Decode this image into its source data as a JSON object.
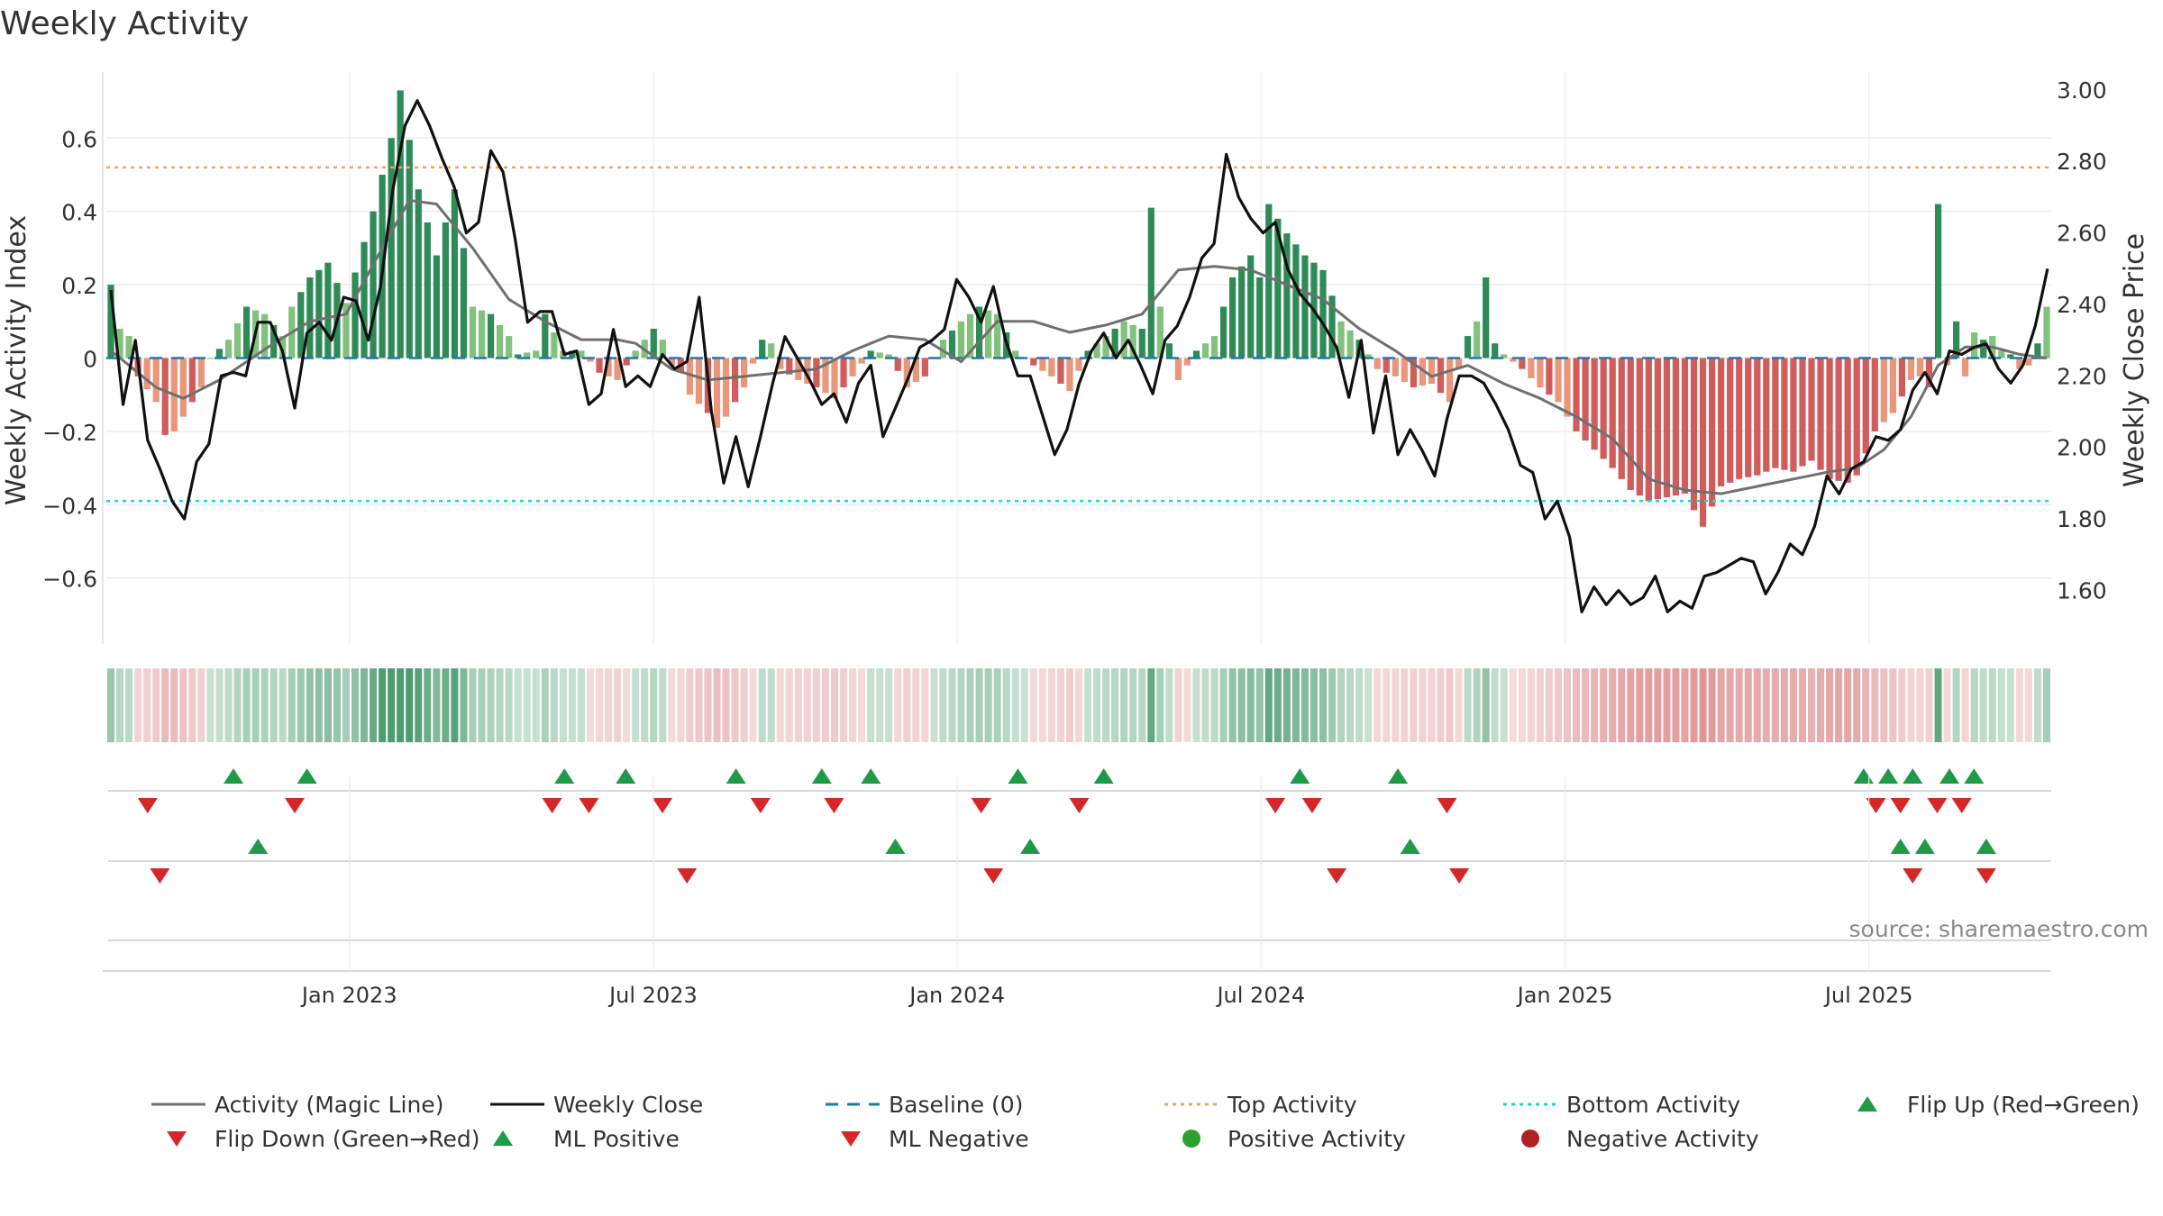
{
  "chart_data": {
    "type": "bar",
    "title": "Weekly Activity",
    "ylabel_left": "Weekly Activity Index",
    "ylabel_right": "Weekly Close Price",
    "source": "source: sharemaestro.com",
    "x_range": [
      2022.6,
      2025.8
    ],
    "ylim_left": [
      -0.78,
      0.78
    ],
    "ylim_right": [
      1.45,
      3.05
    ],
    "yticks_left": [
      {
        "v": 0.6,
        "label": "0.6"
      },
      {
        "v": 0.4,
        "label": "0.4"
      },
      {
        "v": 0.2,
        "label": "0.2"
      },
      {
        "v": 0,
        "label": "0"
      },
      {
        "v": -0.2,
        "label": "−0.2"
      },
      {
        "v": -0.4,
        "label": "−0.4"
      },
      {
        "v": -0.6,
        "label": "−0.6"
      }
    ],
    "yticks_right": [
      {
        "v": 3.0,
        "label": "3.00"
      },
      {
        "v": 2.8,
        "label": "2.80"
      },
      {
        "v": 2.6,
        "label": "2.60"
      },
      {
        "v": 2.4,
        "label": "2.40"
      },
      {
        "v": 2.2,
        "label": "2.20"
      },
      {
        "v": 2.0,
        "label": "2.00"
      },
      {
        "v": 1.8,
        "label": "1.80"
      },
      {
        "v": 1.6,
        "label": "1.60"
      }
    ],
    "xticks": [
      {
        "x": 2023.0,
        "label": "Jan 2023"
      },
      {
        "x": 2023.5,
        "label": "Jul 2023"
      },
      {
        "x": 2024.0,
        "label": "Jan 2024"
      },
      {
        "x": 2024.5,
        "label": "Jul 2024"
      },
      {
        "x": 2025.0,
        "label": "Jan 2025"
      },
      {
        "x": 2025.5,
        "label": "Jul 2025"
      }
    ],
    "top_activity": 0.52,
    "bottom_activity": -0.39,
    "colors": {
      "strong_pos": "#2e8b57",
      "weak_pos": "#82c27e",
      "strong_neg": "#d05c5c",
      "weak_neg": "#e9967a",
      "close": "#111111",
      "magic": "#707070",
      "baseline": "#1f77b4",
      "top": "#f4a460",
      "bottom": "#22d3d3",
      "flip_up": "#1f9a48",
      "flip_down": "#d62728",
      "pos_dot": "#2ca02c",
      "neg_dot": "#b22222"
    },
    "activity_keypoints": [
      [
        0,
        0.2
      ],
      [
        1,
        0.08
      ],
      [
        2,
        0.06
      ],
      [
        3,
        -0.05
      ],
      [
        5,
        -0.12
      ],
      [
        6,
        -0.21
      ],
      [
        7,
        -0.2
      ],
      [
        10,
        -0.08
      ],
      [
        11,
        0
      ],
      [
        13,
        0.05
      ],
      [
        15,
        0.14
      ],
      [
        17,
        0.12
      ],
      [
        19,
        0.06
      ],
      [
        20,
        0.14
      ],
      [
        22,
        0.22
      ],
      [
        24,
        0.26
      ],
      [
        26,
        0.15
      ],
      [
        29,
        0.4
      ],
      [
        31,
        0.6
      ],
      [
        32,
        0.73
      ],
      [
        34,
        0.46
      ],
      [
        36,
        0.28
      ],
      [
        38,
        0.46
      ],
      [
        40,
        0.14
      ],
      [
        42,
        0.12
      ],
      [
        44,
        0.06
      ],
      [
        45,
        0.01
      ],
      [
        47,
        0.02
      ],
      [
        48,
        0.12
      ],
      [
        50,
        0.02
      ],
      [
        52,
        0.02
      ],
      [
        54,
        -0.04
      ],
      [
        56,
        -0.06
      ],
      [
        58,
        0.02
      ],
      [
        60,
        0.08
      ],
      [
        61,
        0.05
      ],
      [
        62,
        -0.02
      ],
      [
        63,
        -0.04
      ],
      [
        64,
        -0.1
      ],
      [
        66,
        -0.15
      ],
      [
        67,
        -0.19
      ],
      [
        68,
        -0.16
      ],
      [
        70,
        -0.08
      ],
      [
        72,
        0.05
      ],
      [
        73,
        0.04
      ],
      [
        74,
        -0.03
      ],
      [
        76,
        -0.06
      ],
      [
        78,
        -0.08
      ],
      [
        80,
        -0.11
      ],
      [
        82,
        -0.05
      ],
      [
        84,
        0.02
      ],
      [
        86,
        0.01
      ],
      [
        88,
        -0.08
      ],
      [
        90,
        -0.05
      ],
      [
        92,
        0.05
      ],
      [
        94,
        0.1
      ],
      [
        96,
        0.14
      ],
      [
        98,
        0.12
      ],
      [
        100,
        0.02
      ],
      [
        102,
        -0.02
      ],
      [
        104,
        -0.05
      ],
      [
        106,
        -0.09
      ],
      [
        108,
        0.02
      ],
      [
        110,
        0.06
      ],
      [
        112,
        0.1
      ],
      [
        114,
        0.08
      ],
      [
        115,
        0.41
      ],
      [
        116,
        0.14
      ],
      [
        118,
        -0.06
      ],
      [
        120,
        0.02
      ],
      [
        122,
        0.06
      ],
      [
        124,
        0.22
      ],
      [
        126,
        0.28
      ],
      [
        127,
        0.22
      ],
      [
        128,
        0.42
      ],
      [
        130,
        0.34
      ],
      [
        132,
        0.28
      ],
      [
        133,
        0.26
      ],
      [
        134,
        0.24
      ],
      [
        136,
        0.1
      ],
      [
        138,
        0.05
      ],
      [
        140,
        -0.03
      ],
      [
        142,
        -0.05
      ],
      [
        144,
        -0.08
      ],
      [
        146,
        -0.07
      ],
      [
        148,
        -0.12
      ],
      [
        150,
        0.06
      ],
      [
        151,
        0.1
      ],
      [
        152,
        0.22
      ],
      [
        153,
        0.04
      ],
      [
        154,
        0.01
      ],
      [
        156,
        -0.03
      ],
      [
        158,
        -0.08
      ],
      [
        160,
        -0.12
      ],
      [
        162,
        -0.2
      ],
      [
        164,
        -0.25
      ],
      [
        166,
        -0.3
      ],
      [
        168,
        -0.36
      ],
      [
        170,
        -0.39
      ],
      [
        172,
        -0.38
      ],
      [
        174,
        -0.37
      ],
      [
        176,
        -0.46
      ],
      [
        178,
        -0.35
      ],
      [
        180,
        -0.33
      ],
      [
        182,
        -0.32
      ],
      [
        184,
        -0.3
      ],
      [
        186,
        -0.31
      ],
      [
        188,
        -0.28
      ],
      [
        190,
        -0.33
      ],
      [
        192,
        -0.34
      ],
      [
        193,
        -0.32
      ],
      [
        195,
        -0.2
      ],
      [
        197,
        -0.15
      ],
      [
        199,
        -0.06
      ],
      [
        200,
        -0.05
      ],
      [
        201,
        -0.08
      ],
      [
        202,
        0.42
      ],
      [
        203,
        -0.02
      ],
      [
        204,
        0.1
      ],
      [
        205,
        -0.05
      ],
      [
        206,
        0.07
      ],
      [
        207,
        0.05
      ],
      [
        208,
        0.06
      ],
      [
        209,
        0.02
      ],
      [
        210,
        0.01
      ],
      [
        211,
        -0.03
      ],
      [
        212,
        -0.02
      ],
      [
        213,
        0.04
      ],
      [
        214,
        0.14
      ]
    ],
    "close_keypoints": [
      [
        0,
        2.44
      ],
      [
        1,
        2.12
      ],
      [
        2,
        2.3
      ],
      [
        3,
        2.02
      ],
      [
        4,
        1.94
      ],
      [
        5,
        1.85
      ],
      [
        6,
        1.8
      ],
      [
        7,
        1.96
      ],
      [
        8,
        2.01
      ],
      [
        9,
        2.2
      ],
      [
        10,
        2.21
      ],
      [
        11,
        2.2
      ],
      [
        12,
        2.35
      ],
      [
        13,
        2.35
      ],
      [
        14,
        2.27
      ],
      [
        15,
        2.11
      ],
      [
        16,
        2.32
      ],
      [
        17,
        2.35
      ],
      [
        18,
        2.3
      ],
      [
        19,
        2.42
      ],
      [
        20,
        2.41
      ],
      [
        21,
        2.3
      ],
      [
        22,
        2.45
      ],
      [
        23,
        2.72
      ],
      [
        24,
        2.9
      ],
      [
        25,
        2.97
      ],
      [
        26,
        2.9
      ],
      [
        27,
        2.81
      ],
      [
        28,
        2.73
      ],
      [
        29,
        2.6
      ],
      [
        30,
        2.63
      ],
      [
        31,
        2.83
      ],
      [
        32,
        2.77
      ],
      [
        33,
        2.58
      ],
      [
        34,
        2.35
      ],
      [
        35,
        2.38
      ],
      [
        36,
        2.38
      ],
      [
        37,
        2.26
      ],
      [
        38,
        2.27
      ],
      [
        39,
        2.12
      ],
      [
        40,
        2.15
      ],
      [
        41,
        2.33
      ],
      [
        42,
        2.17
      ],
      [
        43,
        2.2
      ],
      [
        44,
        2.17
      ],
      [
        45,
        2.26
      ],
      [
        46,
        2.22
      ],
      [
        47,
        2.24
      ],
      [
        48,
        2.42
      ],
      [
        49,
        2.1
      ],
      [
        50,
        1.9
      ],
      [
        51,
        2.03
      ],
      [
        52,
        1.89
      ],
      [
        53,
        2.03
      ],
      [
        54,
        2.18
      ],
      [
        55,
        2.31
      ],
      [
        56,
        2.25
      ],
      [
        57,
        2.19
      ],
      [
        58,
        2.12
      ],
      [
        59,
        2.15
      ],
      [
        60,
        2.07
      ],
      [
        61,
        2.18
      ],
      [
        62,
        2.23
      ],
      [
        63,
        2.03
      ],
      [
        64,
        2.11
      ],
      [
        65,
        2.19
      ],
      [
        66,
        2.28
      ],
      [
        67,
        2.3
      ],
      [
        68,
        2.33
      ],
      [
        69,
        2.47
      ],
      [
        70,
        2.42
      ],
      [
        71,
        2.35
      ],
      [
        72,
        2.45
      ],
      [
        73,
        2.3
      ],
      [
        74,
        2.2
      ],
      [
        75,
        2.2
      ],
      [
        76,
        2.09
      ],
      [
        77,
        1.98
      ],
      [
        78,
        2.05
      ],
      [
        79,
        2.18
      ],
      [
        80,
        2.27
      ],
      [
        81,
        2.32
      ],
      [
        82,
        2.25
      ],
      [
        83,
        2.3
      ],
      [
        84,
        2.23
      ],
      [
        85,
        2.15
      ],
      [
        86,
        2.3
      ],
      [
        87,
        2.34
      ],
      [
        88,
        2.42
      ],
      [
        89,
        2.53
      ],
      [
        90,
        2.57
      ],
      [
        91,
        2.82
      ],
      [
        92,
        2.7
      ],
      [
        93,
        2.64
      ],
      [
        94,
        2.6
      ],
      [
        95,
        2.63
      ],
      [
        96,
        2.5
      ],
      [
        97,
        2.43
      ],
      [
        98,
        2.39
      ],
      [
        99,
        2.34
      ],
      [
        100,
        2.28
      ],
      [
        101,
        2.14
      ],
      [
        102,
        2.3
      ],
      [
        103,
        2.04
      ],
      [
        104,
        2.2
      ],
      [
        105,
        1.98
      ],
      [
        106,
        2.05
      ],
      [
        107,
        1.99
      ],
      [
        108,
        1.92
      ],
      [
        109,
        2.08
      ],
      [
        110,
        2.2
      ],
      [
        111,
        2.2
      ],
      [
        112,
        2.18
      ],
      [
        113,
        2.12
      ],
      [
        114,
        2.05
      ],
      [
        115,
        1.95
      ],
      [
        116,
        1.93
      ],
      [
        117,
        1.8
      ],
      [
        118,
        1.85
      ],
      [
        119,
        1.75
      ],
      [
        120,
        1.54
      ],
      [
        121,
        1.61
      ],
      [
        122,
        1.56
      ],
      [
        123,
        1.6
      ],
      [
        124,
        1.56
      ],
      [
        125,
        1.58
      ],
      [
        126,
        1.64
      ],
      [
        127,
        1.54
      ],
      [
        128,
        1.57
      ],
      [
        129,
        1.55
      ],
      [
        130,
        1.64
      ],
      [
        131,
        1.65
      ],
      [
        132,
        1.67
      ],
      [
        133,
        1.69
      ],
      [
        134,
        1.68
      ],
      [
        135,
        1.59
      ],
      [
        136,
        1.65
      ],
      [
        137,
        1.73
      ],
      [
        138,
        1.7
      ],
      [
        139,
        1.78
      ],
      [
        140,
        1.92
      ],
      [
        141,
        1.87
      ],
      [
        142,
        1.94
      ],
      [
        143,
        1.96
      ],
      [
        144,
        2.03
      ],
      [
        145,
        2.02
      ],
      [
        146,
        2.05
      ],
      [
        147,
        2.16
      ],
      [
        148,
        2.21
      ],
      [
        149,
        2.15
      ],
      [
        150,
        2.27
      ],
      [
        151,
        2.26
      ],
      [
        152,
        2.28
      ],
      [
        153,
        2.29
      ],
      [
        154,
        2.22
      ],
      [
        155,
        2.18
      ],
      [
        156,
        2.23
      ],
      [
        157,
        2.34
      ],
      [
        158,
        2.5
      ]
    ],
    "close_index_scale": 1.355,
    "magic_keypoints": [
      [
        0,
        0.02
      ],
      [
        5,
        -0.08
      ],
      [
        8,
        -0.11
      ],
      [
        12,
        -0.06
      ],
      [
        18,
        0.04
      ],
      [
        22,
        0.1
      ],
      [
        26,
        0.12
      ],
      [
        30,
        0.3
      ],
      [
        33,
        0.43
      ],
      [
        36,
        0.42
      ],
      [
        40,
        0.3
      ],
      [
        44,
        0.16
      ],
      [
        48,
        0.1
      ],
      [
        52,
        0.05
      ],
      [
        56,
        0.05
      ],
      [
        58,
        0.04
      ],
      [
        62,
        -0.03
      ],
      [
        66,
        -0.06
      ],
      [
        70,
        -0.05
      ],
      [
        74,
        -0.04
      ],
      [
        78,
        -0.03
      ],
      [
        82,
        0.02
      ],
      [
        86,
        0.06
      ],
      [
        90,
        0.05
      ],
      [
        94,
        -0.01
      ],
      [
        98,
        0.1
      ],
      [
        102,
        0.1
      ],
      [
        106,
        0.07
      ],
      [
        110,
        0.09
      ],
      [
        114,
        0.12
      ],
      [
        118,
        0.24
      ],
      [
        122,
        0.25
      ],
      [
        126,
        0.24
      ],
      [
        130,
        0.2
      ],
      [
        134,
        0.16
      ],
      [
        138,
        0.08
      ],
      [
        142,
        0.02
      ],
      [
        146,
        -0.05
      ],
      [
        150,
        -0.02
      ],
      [
        154,
        -0.07
      ],
      [
        158,
        -0.11
      ],
      [
        162,
        -0.16
      ],
      [
        166,
        -0.22
      ],
      [
        170,
        -0.33
      ],
      [
        174,
        -0.36
      ],
      [
        178,
        -0.37
      ],
      [
        182,
        -0.35
      ],
      [
        186,
        -0.33
      ],
      [
        190,
        -0.31
      ],
      [
        193,
        -0.3
      ],
      [
        196,
        -0.25
      ],
      [
        199,
        -0.16
      ],
      [
        202,
        -0.02
      ],
      [
        205,
        0.03
      ],
      [
        208,
        0.03
      ],
      [
        211,
        0.01
      ],
      [
        214,
        0.0
      ]
    ],
    "flip_up_weeks": [
      10,
      16,
      37,
      42,
      51,
      58,
      62,
      74,
      81,
      97,
      105,
      143,
      145,
      147,
      150,
      152
    ],
    "flip_down_weeks": [
      3,
      15,
      36,
      39,
      45,
      53,
      59,
      71,
      79,
      95,
      98,
      109,
      144,
      146,
      149,
      151
    ],
    "ml_positive_weeks": [
      12,
      64,
      75,
      106,
      146,
      148,
      153
    ],
    "ml_negative_weeks": [
      4,
      47,
      72,
      100,
      110,
      147,
      153
    ],
    "ml_index_scale": 1.355,
    "legend": [
      "Activity (Magic Line)",
      "Weekly Close",
      "Baseline (0)",
      "Top Activity",
      "Bottom Activity",
      "Flip Up (Red→Green)",
      "Flip Down (Green→Red)",
      "ML Positive",
      "ML Negative",
      "Positive Activity",
      "Negative Activity"
    ],
    "legend_placement": "bottom"
  }
}
